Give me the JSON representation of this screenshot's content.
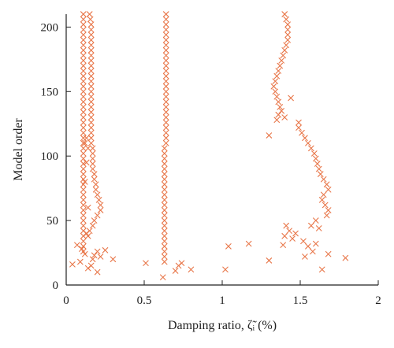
{
  "chart_data": {
    "type": "scatter",
    "marker": "x",
    "xlabel": "Damping ratio, ζ̃ᵢ (%)",
    "ylabel": "Model order",
    "xlim": [
      0,
      2
    ],
    "ylim": [
      0,
      210
    ],
    "xticks": [
      0,
      0.5,
      1,
      1.5,
      2
    ],
    "xtick_labels": [
      "0",
      "0.5",
      "1",
      "1.5",
      "2"
    ],
    "yticks": [
      0,
      50,
      100,
      150,
      200
    ],
    "ytick_labels": [
      "0",
      "50",
      "100",
      "150",
      "200"
    ],
    "grid": false,
    "marker_color": "#e8774a",
    "series": [
      {
        "points": [
          [
            0.11,
            210
          ],
          [
            0.11,
            206
          ],
          [
            0.11,
            202
          ],
          [
            0.11,
            198
          ],
          [
            0.11,
            194
          ],
          [
            0.11,
            190
          ],
          [
            0.11,
            186
          ],
          [
            0.11,
            182
          ],
          [
            0.11,
            178
          ],
          [
            0.11,
            174
          ],
          [
            0.11,
            170
          ],
          [
            0.11,
            166
          ],
          [
            0.11,
            162
          ],
          [
            0.11,
            158
          ],
          [
            0.11,
            154
          ],
          [
            0.11,
            150
          ],
          [
            0.11,
            146
          ],
          [
            0.11,
            142
          ],
          [
            0.11,
            138
          ],
          [
            0.11,
            134
          ],
          [
            0.11,
            130
          ],
          [
            0.11,
            126
          ],
          [
            0.11,
            122
          ],
          [
            0.11,
            118
          ],
          [
            0.11,
            114
          ],
          [
            0.11,
            110
          ],
          [
            0.11,
            106
          ],
          [
            0.11,
            102
          ],
          [
            0.11,
            98
          ],
          [
            0.11,
            94
          ],
          [
            0.11,
            90
          ],
          [
            0.11,
            86
          ],
          [
            0.11,
            82
          ],
          [
            0.11,
            78
          ],
          [
            0.11,
            74
          ],
          [
            0.11,
            70
          ],
          [
            0.11,
            66
          ],
          [
            0.11,
            62
          ],
          [
            0.11,
            58
          ],
          [
            0.11,
            54
          ],
          [
            0.11,
            50
          ],
          [
            0.11,
            46
          ],
          [
            0.11,
            42
          ],
          [
            0.11,
            38
          ],
          [
            0.11,
            34
          ],
          [
            0.11,
            30
          ],
          [
            0.11,
            26
          ],
          [
            0.15,
            210
          ],
          [
            0.155,
            206
          ],
          [
            0.16,
            202
          ],
          [
            0.16,
            198
          ],
          [
            0.16,
            194
          ],
          [
            0.16,
            190
          ],
          [
            0.16,
            186
          ],
          [
            0.16,
            182
          ],
          [
            0.16,
            178
          ],
          [
            0.16,
            174
          ],
          [
            0.16,
            170
          ],
          [
            0.16,
            166
          ],
          [
            0.16,
            162
          ],
          [
            0.16,
            158
          ],
          [
            0.16,
            154
          ],
          [
            0.16,
            150
          ],
          [
            0.16,
            146
          ],
          [
            0.16,
            142
          ],
          [
            0.16,
            138
          ],
          [
            0.16,
            134
          ],
          [
            0.16,
            130
          ],
          [
            0.16,
            126
          ],
          [
            0.16,
            122
          ],
          [
            0.16,
            118
          ],
          [
            0.16,
            114
          ],
          [
            0.16,
            110
          ],
          [
            0.17,
            106
          ],
          [
            0.17,
            102
          ],
          [
            0.17,
            98
          ],
          [
            0.17,
            94
          ],
          [
            0.17,
            90
          ],
          [
            0.18,
            86
          ],
          [
            0.18,
            82
          ],
          [
            0.19,
            78
          ],
          [
            0.19,
            74
          ],
          [
            0.2,
            70
          ],
          [
            0.21,
            66
          ],
          [
            0.22,
            62
          ],
          [
            0.22,
            58
          ],
          [
            0.2,
            54
          ],
          [
            0.18,
            50
          ],
          [
            0.17,
            46
          ],
          [
            0.15,
            42
          ],
          [
            0.14,
            38
          ],
          [
            0.13,
            114
          ],
          [
            0.12,
            110
          ],
          [
            0.14,
            106
          ],
          [
            0.13,
            95
          ],
          [
            0.12,
            80
          ],
          [
            0.14,
            60
          ],
          [
            0.13,
            40
          ],
          [
            0.07,
            31
          ],
          [
            0.1,
            28
          ],
          [
            0.12,
            24
          ],
          [
            0.2,
            26
          ],
          [
            0.22,
            22
          ],
          [
            0.25,
            27
          ],
          [
            0.3,
            20
          ],
          [
            0.18,
            23
          ],
          [
            0.17,
            20
          ],
          [
            0.16,
            15
          ],
          [
            0.14,
            13
          ],
          [
            0.2,
            10
          ],
          [
            0.04,
            16
          ],
          [
            0.09,
            18
          ],
          [
            0.64,
            210
          ],
          [
            0.64,
            206
          ],
          [
            0.64,
            202
          ],
          [
            0.64,
            198
          ],
          [
            0.64,
            194
          ],
          [
            0.64,
            190
          ],
          [
            0.64,
            186
          ],
          [
            0.64,
            182
          ],
          [
            0.64,
            178
          ],
          [
            0.64,
            174
          ],
          [
            0.64,
            170
          ],
          [
            0.64,
            166
          ],
          [
            0.64,
            162
          ],
          [
            0.64,
            158
          ],
          [
            0.64,
            154
          ],
          [
            0.64,
            150
          ],
          [
            0.64,
            146
          ],
          [
            0.64,
            142
          ],
          [
            0.64,
            138
          ],
          [
            0.64,
            134
          ],
          [
            0.64,
            130
          ],
          [
            0.64,
            126
          ],
          [
            0.64,
            122
          ],
          [
            0.64,
            118
          ],
          [
            0.64,
            114
          ],
          [
            0.64,
            110
          ],
          [
            0.63,
            106
          ],
          [
            0.63,
            102
          ],
          [
            0.63,
            98
          ],
          [
            0.63,
            94
          ],
          [
            0.63,
            90
          ],
          [
            0.63,
            86
          ],
          [
            0.63,
            82
          ],
          [
            0.63,
            78
          ],
          [
            0.63,
            74
          ],
          [
            0.63,
            70
          ],
          [
            0.63,
            66
          ],
          [
            0.63,
            62
          ],
          [
            0.63,
            58
          ],
          [
            0.63,
            54
          ],
          [
            0.63,
            50
          ],
          [
            0.63,
            46
          ],
          [
            0.63,
            42
          ],
          [
            0.63,
            38
          ],
          [
            0.63,
            34
          ],
          [
            0.63,
            30
          ],
          [
            0.63,
            26
          ],
          [
            0.63,
            22
          ],
          [
            0.63,
            18
          ],
          [
            0.51,
            17
          ],
          [
            0.62,
            6
          ],
          [
            0.7,
            11
          ],
          [
            0.72,
            15
          ],
          [
            0.74,
            17
          ],
          [
            0.8,
            12
          ],
          [
            1.02,
            12
          ],
          [
            1.04,
            30
          ],
          [
            1.17,
            32
          ],
          [
            1.3,
            19
          ],
          [
            1.39,
            31
          ],
          [
            1.64,
            12
          ],
          [
            1.68,
            24
          ],
          [
            1.79,
            21
          ],
          [
            1.4,
            210
          ],
          [
            1.41,
            206
          ],
          [
            1.42,
            202
          ],
          [
            1.42,
            198
          ],
          [
            1.42,
            194
          ],
          [
            1.42,
            190
          ],
          [
            1.41,
            186
          ],
          [
            1.4,
            182
          ],
          [
            1.39,
            178
          ],
          [
            1.38,
            174
          ],
          [
            1.37,
            170
          ],
          [
            1.36,
            166
          ],
          [
            1.35,
            162
          ],
          [
            1.34,
            158
          ],
          [
            1.33,
            154
          ],
          [
            1.34,
            150
          ],
          [
            1.35,
            146
          ],
          [
            1.36,
            142
          ],
          [
            1.37,
            138
          ],
          [
            1.38,
            135
          ],
          [
            1.36,
            132
          ],
          [
            1.4,
            130
          ],
          [
            1.44,
            145
          ],
          [
            1.35,
            128
          ],
          [
            1.3,
            116
          ],
          [
            1.49,
            126
          ],
          [
            1.49,
            122
          ],
          [
            1.51,
            118
          ],
          [
            1.53,
            114
          ],
          [
            1.55,
            110
          ],
          [
            1.57,
            106
          ],
          [
            1.59,
            102
          ],
          [
            1.6,
            98
          ],
          [
            1.61,
            94
          ],
          [
            1.62,
            90
          ],
          [
            1.63,
            86
          ],
          [
            1.65,
            82
          ],
          [
            1.67,
            78
          ],
          [
            1.68,
            74
          ],
          [
            1.65,
            70
          ],
          [
            1.64,
            66
          ],
          [
            1.66,
            62
          ],
          [
            1.68,
            58
          ],
          [
            1.67,
            54
          ],
          [
            1.6,
            50
          ],
          [
            1.57,
            46
          ],
          [
            1.4,
            38
          ],
          [
            1.43,
            42
          ],
          [
            1.45,
            36
          ],
          [
            1.41,
            46
          ],
          [
            1.47,
            40
          ],
          [
            1.52,
            34
          ],
          [
            1.55,
            30
          ],
          [
            1.58,
            26
          ],
          [
            1.6,
            32
          ],
          [
            1.62,
            44
          ],
          [
            1.53,
            22
          ]
        ]
      }
    ]
  }
}
